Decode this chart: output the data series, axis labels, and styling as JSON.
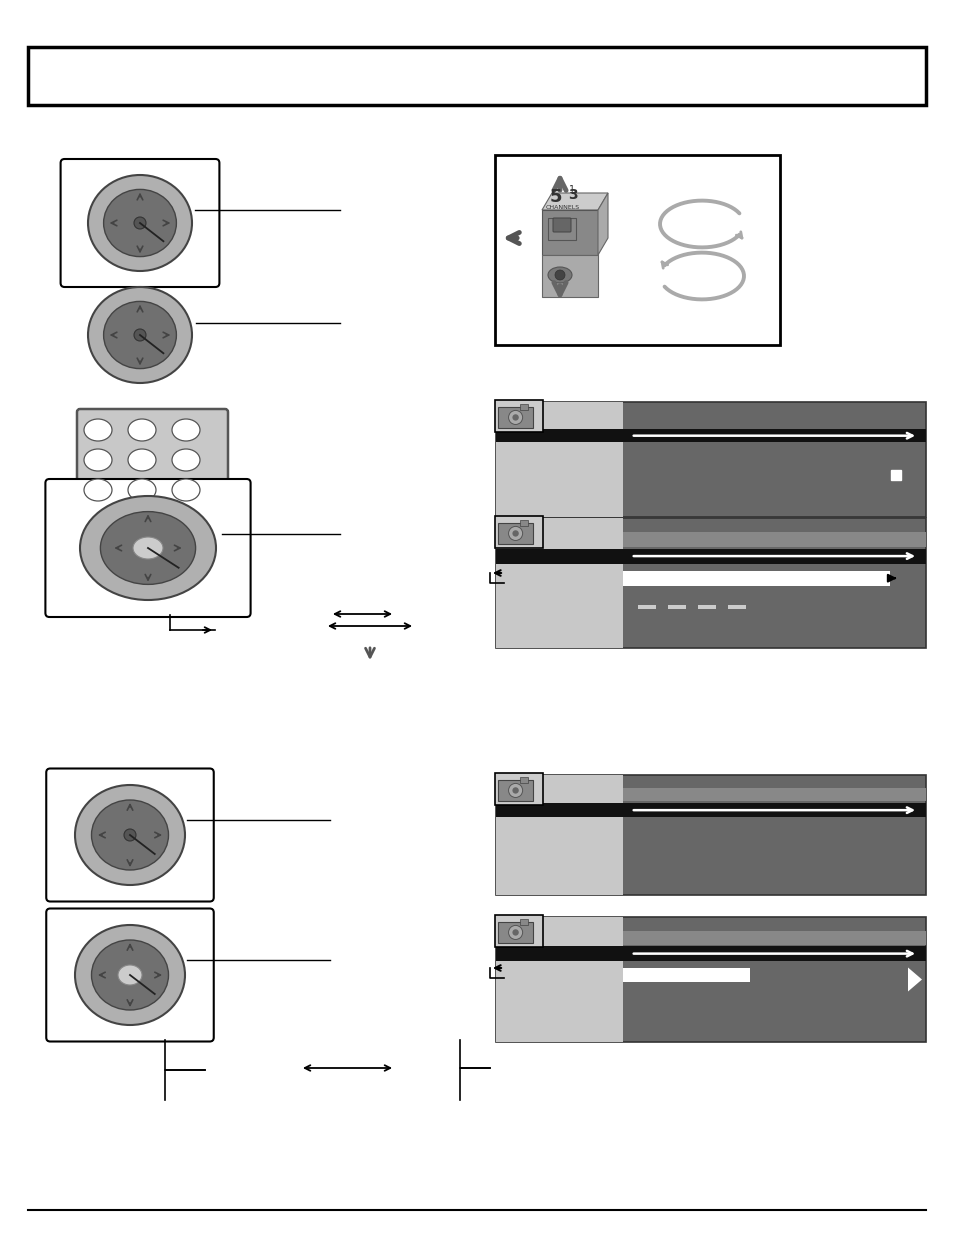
{
  "bg_color": "#ffffff",
  "dark_gray": "#666666",
  "mid_gray": "#aaaaaa",
  "light_gray": "#cccccc",
  "very_light_gray": "#dddddd",
  "black": "#111111",
  "white": "#ffffff",
  "dial_outer": "#b0b0b0",
  "dial_inner_dark": "#707070",
  "dial_ring": "#888888",
  "arrow_gray": "#888888",
  "panel_dark": "#666666",
  "panel_left": "#cccccc",
  "panel_black_bar": "#111111",
  "panel_mid_bar": "#888888"
}
